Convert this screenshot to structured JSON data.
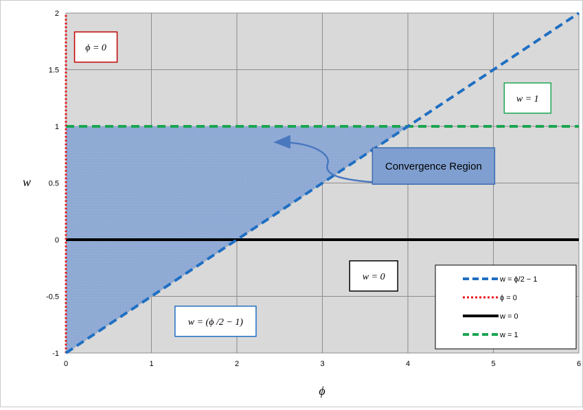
{
  "chart_data": {
    "type": "line",
    "title": "",
    "xlabel": "ϕ",
    "ylabel": "w",
    "xlim": [
      0,
      6
    ],
    "ylim": [
      -1,
      2
    ],
    "x_ticks": [
      "0",
      "1",
      "2",
      "3",
      "4",
      "5",
      "6"
    ],
    "y_ticks": [
      "-1",
      "-0.5",
      "0",
      "0.5",
      "1",
      "1.5",
      "2"
    ],
    "grid": true,
    "plot_background": "#d9d9d9",
    "legend_position": "bottom-right",
    "series": [
      {
        "name": "w = ϕ/2 − 1",
        "style": "dashed",
        "color": "#1f6fc3",
        "points": [
          [
            0,
            -1
          ],
          [
            6,
            2
          ]
        ]
      },
      {
        "name": "ϕ = 0",
        "style": "dotted",
        "color": "#e8141b",
        "points": [
          [
            0,
            -1
          ],
          [
            0,
            2
          ]
        ]
      },
      {
        "name": "w = 0",
        "style": "solid",
        "color": "#000000",
        "points": [
          [
            0,
            0
          ],
          [
            6,
            0
          ]
        ]
      },
      {
        "name": "w = 1",
        "style": "dashed",
        "color": "#1aa551",
        "points": [
          [
            0,
            1
          ],
          [
            6,
            1
          ]
        ]
      }
    ],
    "shaded_region": {
      "vertices": [
        [
          0,
          -1
        ],
        [
          0,
          1
        ],
        [
          4,
          1
        ]
      ],
      "color": "#8ea9d4"
    },
    "annotations": [
      {
        "text": "ϕ = 0",
        "border_color": "#c00000",
        "at": [
          0.35,
          1.7
        ]
      },
      {
        "text": "w = 1",
        "border_color": "#1aa551",
        "at": [
          5.4,
          1.25
        ]
      },
      {
        "text": "w = 0",
        "border_color": "#000000",
        "at": [
          3.6,
          -0.32
        ]
      },
      {
        "text": "w = (ϕ /2 − 1)",
        "border_color": "#1f6fc3",
        "at": [
          1.75,
          -0.72
        ]
      },
      {
        "text": "Convergence Region",
        "border_color": "#3c6bb0",
        "fill": "#7f9fd0",
        "at": [
          4.3,
          0.65
        ]
      }
    ]
  }
}
